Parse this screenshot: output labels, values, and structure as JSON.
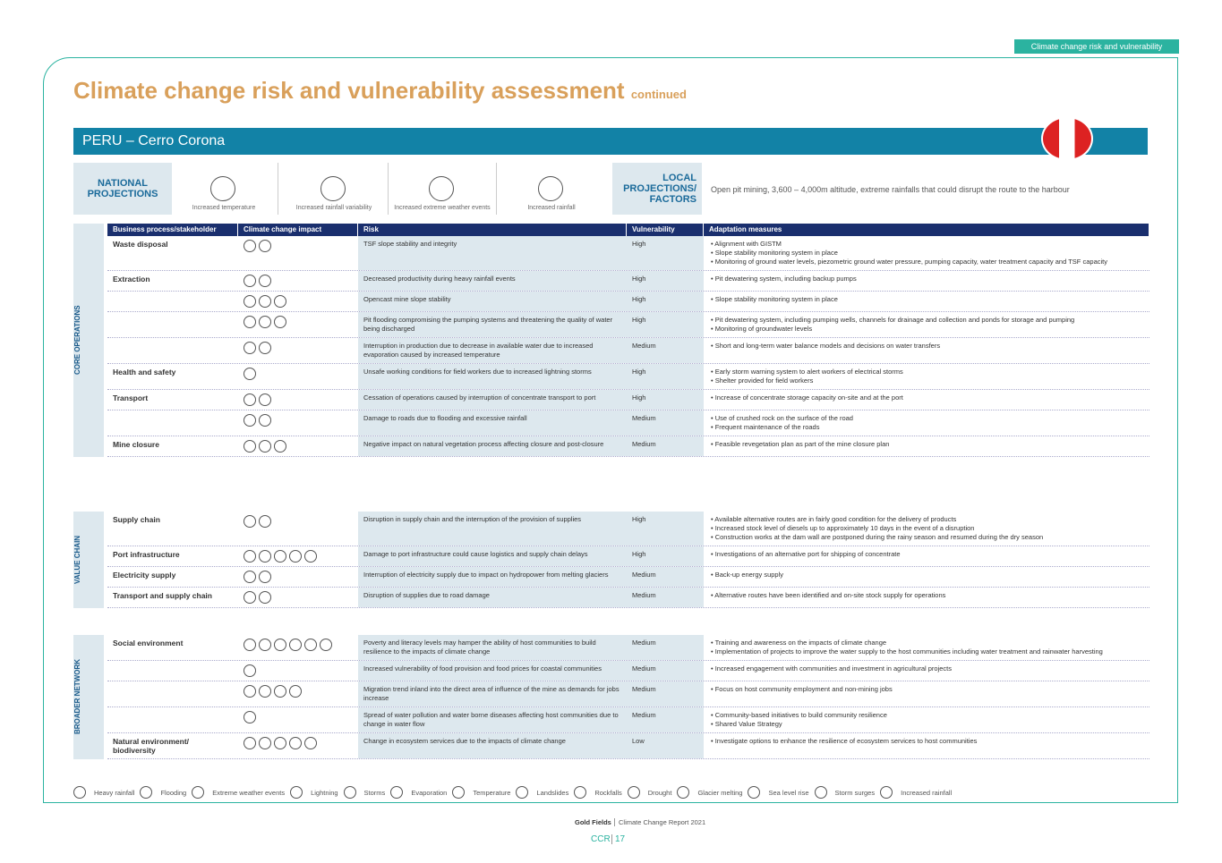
{
  "tab": "Climate change risk and vulnerability",
  "header": {
    "title": "Climate change risk and vulnerability assessment",
    "suffix": "continued"
  },
  "banner": "PERU – Cerro Corona",
  "national": {
    "label": "NATIONAL PROJECTIONS",
    "items": [
      "Increased temperature",
      "Increased rainfall variability",
      "Increased extreme weather events",
      "Increased rainfall"
    ]
  },
  "local": {
    "label": "LOCAL PROJECTIONS/ FACTORS",
    "text": "Open pit mining, 3,600 – 4,000m altitude, extreme rainfalls that could disrupt the route to the harbour"
  },
  "table": {
    "headers": [
      "Business process/stakeholder",
      "Climate change impact",
      "Risk",
      "Vulnerability",
      "Adaptation measures"
    ],
    "sections": [
      {
        "label": "CORE OPERATIONS",
        "rows": [
          {
            "process": "Waste disposal",
            "risk": "TSF slope stability and integrity",
            "vulnerability": "High",
            "measures": [
              "Alignment with GISTM",
              "Slope stability monitoring system in place",
              "Monitoring of ground water levels, piezometric ground water pressure, pumping capacity, water treatment capacity and TSF capacity"
            ]
          },
          {
            "process": "Extraction",
            "risk": "Decreased productivity during heavy rainfall events",
            "vulnerability": "High",
            "measures": [
              "Pit dewatering system, including backup pumps"
            ]
          },
          {
            "process": null,
            "risk": "Opencast mine slope stability",
            "vulnerability": "High",
            "measures": [
              "Slope stability monitoring system in place"
            ]
          },
          {
            "process": null,
            "risk": "Pit flooding compromising the pumping systems and threatening the quality of water being discharged",
            "vulnerability": "High",
            "measures": [
              "Pit dewatering system, including pumping wells, channels for drainage and collection and ponds for storage and pumping",
              "Monitoring of groundwater levels"
            ]
          },
          {
            "process": null,
            "risk": "Interruption in production due to decrease in available water due to increased evaporation caused by increased temperature",
            "vulnerability": "Medium",
            "measures": [
              "Short and long-term water balance models and decisions on water transfers"
            ]
          },
          {
            "process": "Health and safety",
            "risk": "Unsafe working conditions for field workers due to increased lightning storms",
            "vulnerability": "High",
            "measures": [
              "Early storm warning system to alert workers of electrical storms",
              "Shelter provided for field workers"
            ]
          },
          {
            "process": "Transport",
            "risk": "Cessation of operations caused by interruption of concentrate transport to port",
            "vulnerability": "High",
            "measures": [
              "Increase of concentrate storage capacity on-site and at the port"
            ]
          },
          {
            "process": null,
            "risk": "Damage to roads due to flooding and excessive rainfall",
            "vulnerability": "Medium",
            "measures": [
              "Use of crushed rock on the surface of the road",
              "Frequent maintenance of the roads"
            ]
          },
          {
            "process": "Mine closure",
            "risk": "Negative impact on natural vegetation process affecting closure and post-closure",
            "vulnerability": "Medium",
            "measures": [
              "Feasible revegetation plan as part of the mine closure plan"
            ]
          }
        ]
      },
      {
        "label": "VALUE CHAIN",
        "rows": [
          {
            "process": "Supply chain",
            "risk": "Disruption in supply chain and the interruption of the provision of supplies",
            "vulnerability": "High",
            "measures": [
              "Available alternative routes are in fairly good condition for the delivery of products",
              "Increased stock level of diesels up to approximately 10 days in the event of a disruption",
              "Construction works at the dam wall are postponed during the rainy season and resumed during the dry season"
            ]
          },
          {
            "process": "Port infrastructure",
            "risk": "Damage to port infrastructure could cause logistics and supply chain delays",
            "vulnerability": "High",
            "measures": [
              "Investigations of an alternative port for shipping of concentrate"
            ]
          },
          {
            "process": "Electricity supply",
            "risk": "Interruption of electricity supply due to impact on hydropower from melting glaciers",
            "vulnerability": "Medium",
            "measures": [
              "Back-up energy supply"
            ]
          },
          {
            "process": "Transport and supply chain",
            "risk": "Disruption of supplies due to road damage",
            "vulnerability": "Medium",
            "measures": [
              "Alternative routes have been identified and on-site stock supply for operations"
            ]
          }
        ]
      },
      {
        "label": "BROADER NETWORK",
        "rows": [
          {
            "process": "Social environment",
            "risk": "Poverty and literacy levels may hamper the ability of host communities to build resilience to the impacts of climate change",
            "vulnerability": "Medium",
            "measures": [
              "Training and awareness on the impacts of climate change",
              "Implementation of projects to improve the water supply to the host communities including water treatment and rainwater harvesting"
            ]
          },
          {
            "process": null,
            "risk": "Increased vulnerability of food provision and food prices for coastal communities",
            "vulnerability": "Medium",
            "measures": [
              "Increased engagement with communities and investment in agricultural projects"
            ]
          },
          {
            "process": null,
            "risk": "Migration trend inland into the direct area of influence of the mine as demands for jobs increase",
            "vulnerability": "Medium",
            "measures": [
              "Focus on host community employment and non-mining jobs"
            ]
          },
          {
            "process": null,
            "risk": "Spread of water pollution and water borne diseases affecting host communities due to change in water flow",
            "vulnerability": "Medium",
            "measures": [
              "Community-based initiatives to build community resilience",
              "Shared Value Strategy"
            ]
          },
          {
            "process": "Natural environment/ biodiversity",
            "risk": "Change in ecosystem services due to the impacts of climate change",
            "vulnerability": "Low",
            "measures": [
              "Investigate options to enhance the resilience of ecosystem services to host communities"
            ]
          }
        ]
      }
    ]
  },
  "legend": [
    "Heavy rainfall",
    "Flooding",
    "Extreme weather events",
    "Lightning",
    "Storms",
    "Evaporation",
    "Temperature",
    "Landslides",
    "Rockfalls",
    "Drought",
    "Glacier melting",
    "Sea level rise",
    "Storm surges",
    "Increased rainfall"
  ],
  "footer": {
    "company": "Gold Fields",
    "report": "Climate Change Report 2021",
    "code": "CCR",
    "page": "17"
  }
}
